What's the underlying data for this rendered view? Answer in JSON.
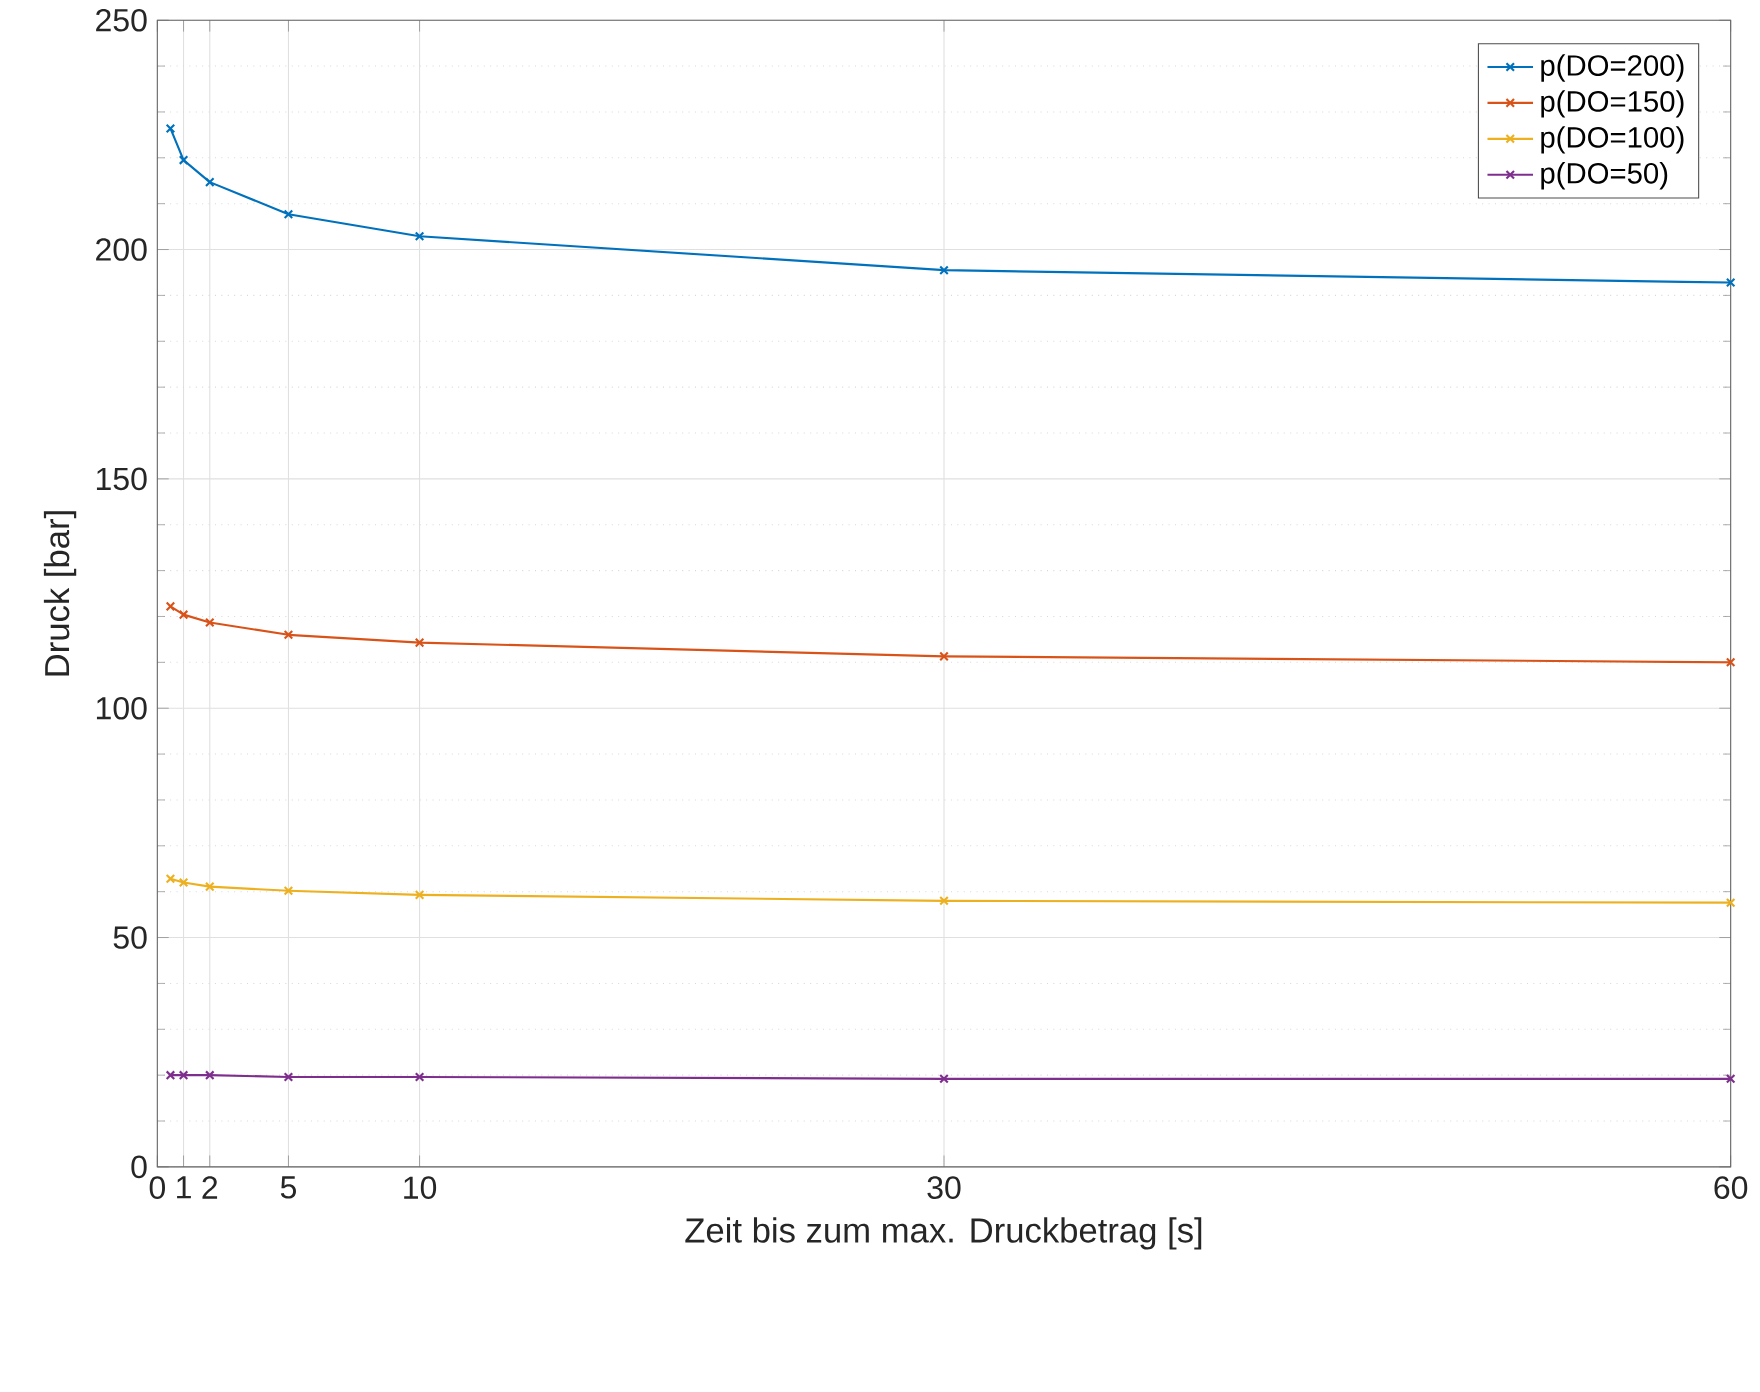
{
  "chart_data": {
    "type": "line",
    "xlabel": "Zeit bis zum max. Druckbetrag [s]",
    "ylabel": "Druck [bar]",
    "x": [
      0.5,
      1,
      2,
      5,
      10,
      30,
      60
    ],
    "series": [
      {
        "name": "p(DO=200)",
        "color": "#0072bd",
        "values": [
          226.4,
          219.5,
          214.7,
          207.7,
          202.9,
          195.5,
          192.8
        ]
      },
      {
        "name": "p(DO=150)",
        "color": "#d95319",
        "values": [
          122.2,
          120.4,
          118.7,
          116,
          114.3,
          111.3,
          110
        ]
      },
      {
        "name": "p(DO=100)",
        "color": "#edb120",
        "values": [
          62.8,
          62,
          61.1,
          60.2,
          59.3,
          58,
          57.6
        ]
      },
      {
        "name": "p(DO=50)",
        "color": "#7e2f8e",
        "values": [
          20,
          20,
          20,
          19.6,
          19.6,
          19.2,
          19.2
        ]
      }
    ],
    "xlim": [
      0,
      60
    ],
    "xticks": [
      0,
      1,
      2,
      5,
      10,
      30,
      60
    ],
    "ylim": [
      0,
      250
    ],
    "yticks": [
      0,
      50,
      100,
      150,
      200,
      250
    ],
    "grid": true,
    "legend": "top right",
    "marker": "cross",
    "line_style": "solid"
  }
}
